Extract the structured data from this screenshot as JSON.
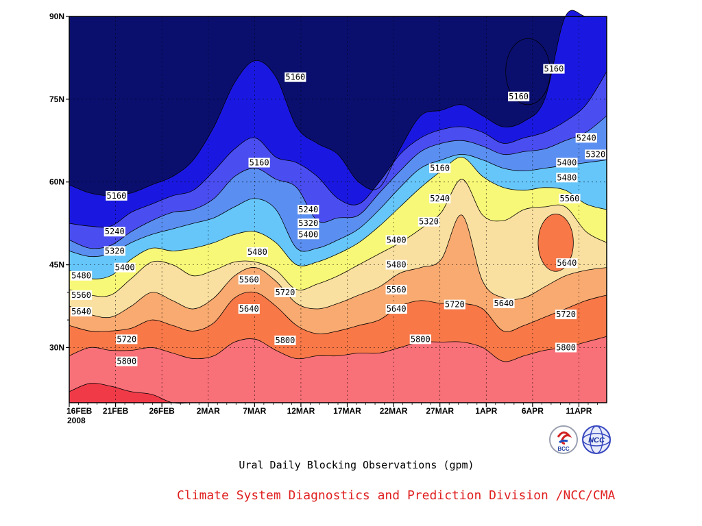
{
  "chart_data": {
    "type": "contour",
    "title": "Ural Daily Blocking Observations (gpm)",
    "credit": "Climate System Diagnostics and Prediction Division /NCC/CMA",
    "x_axis": {
      "ticks": [
        "16FEB",
        "21FEB",
        "26FEB",
        "2MAR",
        "7MAR",
        "12MAR",
        "17MAR",
        "22MAR",
        "27MAR",
        "1APR",
        "6APR",
        "11APR"
      ],
      "year_label": "2008",
      "start": "2008-02-16",
      "end": "2008-04-14"
    },
    "y_axis": {
      "ticks": [
        "30N",
        "45N",
        "60N",
        "75N",
        "90N"
      ],
      "ylim": [
        20,
        90
      ]
    },
    "grid": true,
    "levels": [
      5160,
      5240,
      5320,
      5400,
      5480,
      5560,
      5640,
      5720,
      5800
    ],
    "colors": [
      "#0a0f6e",
      "#1a18e0",
      "#4a4ef0",
      "#5a8ef0",
      "#66c6fa",
      "#f8f878",
      "#fae0a0",
      "#f8aa70",
      "#f87848",
      "#f87078",
      "#f03a48"
    ],
    "contours": [
      {
        "level": 5160,
        "lat": [
          59.5,
          58,
          57.5,
          58,
          59.5,
          61,
          64,
          70,
          78,
          82,
          79,
          70,
          67,
          65,
          60,
          59,
          66,
          72,
          73,
          74,
          72,
          70,
          71,
          75,
          90,
          90,
          90
        ]
      },
      {
        "level": 5240,
        "lat": [
          52.5,
          52,
          52,
          54.5,
          56,
          57.5,
          58.5,
          62,
          66,
          68,
          64.5,
          63.5,
          61,
          57,
          56,
          60,
          65,
          68,
          69.5,
          70,
          69,
          67,
          68,
          69,
          71,
          74,
          80
        ]
      },
      {
        "level": 5320,
        "lat": [
          49.5,
          48,
          48.5,
          51,
          53,
          54.5,
          55,
          57,
          61,
          62.5,
          60.5,
          59,
          53,
          53.5,
          54,
          58,
          62,
          65.5,
          67,
          67.5,
          66.5,
          65,
          65.5,
          66,
          67.5,
          69,
          72
        ]
      },
      {
        "level": 5400,
        "lat": [
          47.5,
          46.5,
          47,
          49,
          50.5,
          51.5,
          52.5,
          53.5,
          55.5,
          57,
          55,
          48,
          48,
          49.5,
          51.5,
          55,
          59,
          62.5,
          64,
          65,
          64,
          62.5,
          62,
          62.5,
          63,
          63.5,
          64
        ]
      },
      {
        "level": 5480,
        "lat": [
          44,
          42.5,
          43,
          46,
          48,
          47.5,
          48,
          49,
          50.5,
          51,
          49,
          45,
          45.5,
          47,
          49,
          52,
          55.5,
          59,
          62,
          64.5,
          61,
          59,
          58.5,
          59,
          58.5,
          56,
          55
        ]
      },
      {
        "level": 5560,
        "lat": [
          40.5,
          39.5,
          39.5,
          42.5,
          45.5,
          45,
          43,
          44,
          45.5,
          45.5,
          44,
          40.5,
          41.5,
          43,
          45,
          47,
          49,
          51.5,
          54.5,
          60.5,
          54,
          53,
          55,
          55.5,
          55.5,
          51,
          49
        ]
      },
      {
        "level": 5640,
        "lat": [
          37.5,
          36,
          35.5,
          37.5,
          40,
          38.5,
          37,
          39,
          43,
          44.5,
          42,
          38,
          37,
          38,
          39.5,
          41,
          43.5,
          44.5,
          46,
          54,
          42,
          39,
          39,
          41,
          43,
          44,
          44.5
        ]
      },
      {
        "level": 5720,
        "lat": [
          34,
          33,
          33,
          33.5,
          35,
          34,
          33,
          34.5,
          39,
          40,
          37.5,
          34,
          32.5,
          33,
          34,
          35,
          37.5,
          38.5,
          38,
          38,
          37,
          33,
          34,
          35.5,
          37,
          38.5,
          39.5
        ]
      },
      {
        "level": 5800,
        "lat": [
          28.5,
          30,
          29.5,
          29.5,
          30,
          29,
          28,
          28.5,
          31,
          31.5,
          29.5,
          28,
          28.5,
          28.5,
          29,
          29,
          30,
          31,
          31,
          31,
          30,
          27.5,
          28.5,
          29.5,
          30,
          31,
          32
        ]
      },
      {
        "level": 5880,
        "lat": [
          22,
          23.5,
          23,
          22,
          21.5,
          20,
          20,
          20,
          20,
          20,
          20,
          20,
          20,
          20,
          20,
          20,
          20,
          20,
          20,
          20,
          20,
          20,
          20,
          20,
          20,
          20,
          20
        ]
      }
    ],
    "closed_contours": [
      {
        "level": 5160,
        "day": 49.5,
        "lat": 80,
        "dday": 2.4,
        "dlat": 6
      },
      {
        "level": 5640,
        "day": 52.5,
        "lat": 49,
        "dday": 1.9,
        "dlat": 5.2
      }
    ],
    "contour_labels": [
      {
        "text": "5160",
        "day": 5.1,
        "lat": 57.5
      },
      {
        "text": "5160",
        "day": 20.5,
        "lat": 63.5
      },
      {
        "text": "5160",
        "day": 24.4,
        "lat": 79
      },
      {
        "text": "5160",
        "day": 40,
        "lat": 62.5
      },
      {
        "text": "5160",
        "day": 48.5,
        "lat": 75.5
      },
      {
        "text": "5160",
        "day": 52.3,
        "lat": 80.5
      },
      {
        "text": "5240",
        "day": 4.9,
        "lat": 51
      },
      {
        "text": "5240",
        "day": 25.8,
        "lat": 55
      },
      {
        "text": "5240",
        "day": 40,
        "lat": 57
      },
      {
        "text": "5240",
        "day": 55.8,
        "lat": 68
      },
      {
        "text": "5320",
        "day": 4.9,
        "lat": 47.5
      },
      {
        "text": "5320",
        "day": 25.8,
        "lat": 52.5
      },
      {
        "text": "5320",
        "day": 38.8,
        "lat": 52.8
      },
      {
        "text": "5320",
        "day": 56.8,
        "lat": 65
      },
      {
        "text": "5400",
        "day": 6,
        "lat": 44.5
      },
      {
        "text": "5400",
        "day": 25.8,
        "lat": 50.5
      },
      {
        "text": "5400",
        "day": 35.3,
        "lat": 49.5
      },
      {
        "text": "5400",
        "day": 53.7,
        "lat": 63.5
      },
      {
        "text": "5480",
        "day": 1.3,
        "lat": 43
      },
      {
        "text": "5480",
        "day": 20.3,
        "lat": 47.3
      },
      {
        "text": "5480",
        "day": 35.3,
        "lat": 45
      },
      {
        "text": "5480",
        "day": 53.7,
        "lat": 60.8
      },
      {
        "text": "5560",
        "day": 1.3,
        "lat": 39.5
      },
      {
        "text": "5560",
        "day": 19.4,
        "lat": 42.3
      },
      {
        "text": "5560",
        "day": 35.3,
        "lat": 40.5
      },
      {
        "text": "5560",
        "day": 54,
        "lat": 57
      },
      {
        "text": "5640",
        "day": 1.3,
        "lat": 36.5
      },
      {
        "text": "5640",
        "day": 19.4,
        "lat": 37
      },
      {
        "text": "5640",
        "day": 35.3,
        "lat": 37
      },
      {
        "text": "5640",
        "day": 46.9,
        "lat": 38
      },
      {
        "text": "5640",
        "day": 53.7,
        "lat": 45.3
      },
      {
        "text": "5720",
        "day": 6.2,
        "lat": 31.5
      },
      {
        "text": "5720",
        "day": 23.3,
        "lat": 40
      },
      {
        "text": "5720",
        "day": 41.6,
        "lat": 37.8
      },
      {
        "text": "5720",
        "day": 53.6,
        "lat": 36
      },
      {
        "text": "5800",
        "day": 6.2,
        "lat": 27.5
      },
      {
        "text": "5800",
        "day": 23.3,
        "lat": 31.3
      },
      {
        "text": "5800",
        "day": 37.9,
        "lat": 31.5
      },
      {
        "text": "5800",
        "day": 53.6,
        "lat": 30
      }
    ]
  }
}
